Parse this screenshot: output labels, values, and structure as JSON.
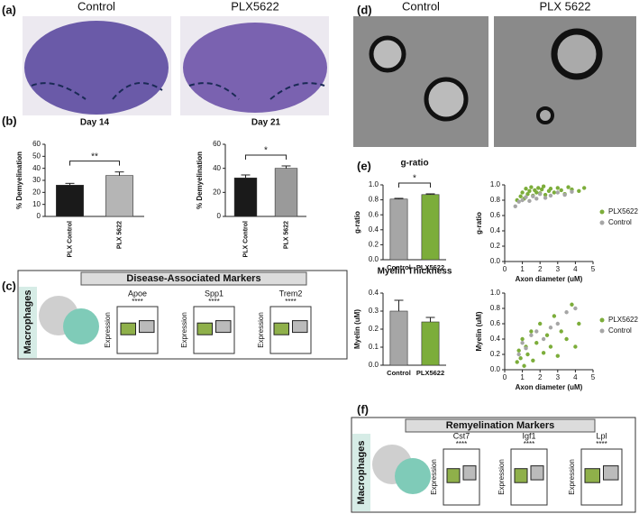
{
  "panel_labels": [
    "(a)",
    "(b)",
    "(c)",
    "(d)",
    "(e)",
    "(f)"
  ],
  "a": {
    "labels": [
      "Control",
      "PLX5622"
    ]
  },
  "d": {
    "labels": [
      "Control",
      "PLX 5622"
    ]
  },
  "c": {
    "title": "Disease-Associated Markers",
    "side": "Macrophages",
    "genes": [
      "Apoe",
      "Spp1",
      "Trem2"
    ],
    "sig": [
      "****",
      "****",
      "****"
    ],
    "ylabel": "Expression"
  },
  "f": {
    "title": "Remyelination Markers",
    "side": "Macrophages",
    "genes": [
      "Cst7",
      "Igf1",
      "Lpl"
    ],
    "sig": [
      "****",
      "****",
      "****"
    ],
    "ylabel": "Expression"
  },
  "chart_data": [
    {
      "type": "bar",
      "title": "Day 14",
      "ylabel": "% Demyelination",
      "categories": [
        "PLX Control",
        "PLX 5622"
      ],
      "values": [
        26,
        34
      ],
      "errors": [
        1.5,
        3
      ],
      "colors": [
        "#1a1a1a",
        "#b5b5b5"
      ],
      "ylim": [
        0,
        60
      ],
      "yticks": [
        0,
        10,
        20,
        30,
        40,
        50,
        60
      ],
      "annotation": "**"
    },
    {
      "type": "bar",
      "title": "Day 21",
      "ylabel": "% Demyelination",
      "categories": [
        "PLX Control",
        "PLX 5622"
      ],
      "values": [
        32,
        40
      ],
      "errors": [
        2.5,
        2
      ],
      "colors": [
        "#1a1a1a",
        "#9a9a9a"
      ],
      "ylim": [
        0,
        60
      ],
      "yticks": [
        0,
        20,
        40,
        60
      ],
      "annotation": "*"
    },
    {
      "type": "bar",
      "title": "g-ratio",
      "ylabel": "g-ratio",
      "categories": [
        "Control",
        "PLX5622"
      ],
      "values": [
        0.81,
        0.87
      ],
      "errors": [
        0.01,
        0.01
      ],
      "colors": [
        "#a6a6a6",
        "#7cad3a"
      ],
      "ylim": [
        0,
        1.0
      ],
      "yticks": [
        {
          "value": 0,
          "label": "0.0"
        },
        0.2,
        0.4,
        0.6,
        0.8,
        {
          "value": 1,
          "label": "1.0"
        }
      ],
      "annotation": "*"
    },
    {
      "type": "bar",
      "title": "Myelin Thickness",
      "ylabel": "Myelin (uM)",
      "categories": [
        "Control",
        "PLX5622"
      ],
      "values": [
        0.3,
        0.24
      ],
      "errors": [
        0.06,
        0.025
      ],
      "colors": [
        "#a6a6a6",
        "#7cad3a"
      ],
      "ylim": [
        0,
        0.4
      ],
      "yticks": [
        {
          "value": 0,
          "label": "0.0"
        },
        0.1,
        0.2,
        0.3,
        0.4
      ]
    },
    {
      "type": "scatter",
      "xlabel": "Axon diameter (uM)",
      "ylabel": "g-ratio",
      "xlim": [
        0,
        5
      ],
      "xticks": [
        0,
        1,
        2,
        3,
        4,
        5
      ],
      "ylim": [
        0,
        1.0
      ],
      "yticks": [
        {
          "value": 0,
          "label": "0.0"
        },
        0.2,
        0.4,
        0.6,
        0.8,
        {
          "value": 1,
          "label": "1.0"
        }
      ],
      "legend": "right",
      "series": [
        {
          "name": "PLX5622",
          "color": "#7cad3a",
          "x": [
            0.7,
            0.9,
            1.0,
            1.1,
            1.2,
            1.3,
            1.4,
            1.5,
            1.6,
            1.7,
            1.8,
            1.9,
            2.0,
            2.1,
            2.2,
            2.3,
            2.5,
            2.6,
            2.8,
            3.0,
            3.2,
            3.4,
            3.6,
            3.8,
            4.2,
            4.5
          ],
          "values": [
            0.8,
            0.85,
            0.9,
            0.82,
            0.95,
            0.88,
            0.92,
            0.97,
            0.86,
            0.93,
            0.9,
            0.96,
            0.89,
            0.94,
            0.98,
            0.87,
            0.92,
            0.95,
            0.9,
            0.96,
            0.93,
            0.88,
            0.97,
            0.94,
            0.92,
            0.96
          ]
        },
        {
          "name": "Control",
          "color": "#a6a6a6",
          "x": [
            0.6,
            0.8,
            1.0,
            1.2,
            1.4,
            1.6,
            1.8,
            2.0,
            2.3,
            2.6,
            3.0,
            3.4,
            3.8
          ],
          "values": [
            0.72,
            0.78,
            0.8,
            0.84,
            0.79,
            0.85,
            0.82,
            0.88,
            0.83,
            0.86,
            0.9,
            0.87,
            0.91
          ]
        }
      ]
    },
    {
      "type": "scatter",
      "xlabel": "Axon diameter (uM)",
      "ylabel": "Myelin (uM)",
      "xlim": [
        0,
        5
      ],
      "xticks": [
        0,
        1,
        2,
        3,
        4,
        5
      ],
      "ylim": [
        0,
        1.0
      ],
      "yticks": [
        {
          "value": 0,
          "label": "0.0"
        },
        0.2,
        0.4,
        0.6,
        0.8,
        {
          "value": 1,
          "label": "1.0"
        }
      ],
      "legend": "right",
      "series": [
        {
          "name": "PLX5622",
          "color": "#7cad3a",
          "x": [
            0.7,
            0.8,
            0.9,
            1.0,
            1.1,
            1.2,
            1.3,
            1.5,
            1.6,
            1.8,
            2.0,
            2.2,
            2.4,
            2.6,
            2.8,
            3.0,
            3.2,
            3.5,
            3.8,
            4.0,
            4.2
          ],
          "values": [
            0.1,
            0.25,
            0.15,
            0.4,
            0.05,
            0.3,
            0.2,
            0.5,
            0.12,
            0.35,
            0.6,
            0.22,
            0.45,
            0.3,
            0.7,
            0.18,
            0.5,
            0.4,
            0.85,
            0.3,
            0.6
          ]
        },
        {
          "name": "Control",
          "color": "#a6a6a6",
          "x": [
            0.8,
            1.0,
            1.2,
            1.5,
            1.8,
            2.2,
            2.6,
            3.0,
            3.5,
            4.0
          ],
          "values": [
            0.2,
            0.35,
            0.28,
            0.45,
            0.5,
            0.4,
            0.55,
            0.6,
            0.75,
            0.8
          ]
        }
      ]
    }
  ]
}
